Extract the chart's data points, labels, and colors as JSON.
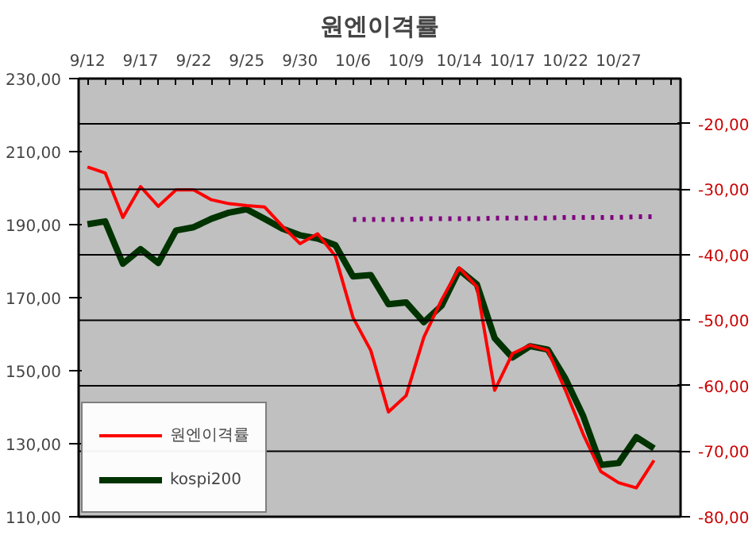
{
  "chart_data": {
    "type": "line",
    "title": "원엔이격률",
    "categories": [
      "9/12",
      null,
      null,
      "9/17",
      null,
      null,
      "9/22",
      null,
      null,
      "9/25",
      null,
      null,
      "9/30",
      null,
      null,
      "10/6",
      null,
      null,
      "10/9",
      null,
      null,
      "10/14",
      null,
      null,
      "10/17",
      null,
      null,
      "10/22",
      null,
      null,
      "10/27",
      null,
      null,
      null
    ],
    "series": [
      {
        "name": "원엔이격률",
        "color": "#ff0000",
        "axis": "y2",
        "values": [
          -26.6,
          -27.5,
          -34.3,
          -29.6,
          -32.6,
          -30.1,
          -30.1,
          -31.6,
          -32.2,
          -32.5,
          -32.7,
          -35.6,
          -38.3,
          -36.8,
          -40.2,
          -49.6,
          -54.6,
          -64.0,
          -61.5,
          -52.6,
          -46.9,
          -42.0,
          -44.9,
          -60.7,
          -55.1,
          -53.8,
          -54.6,
          -60.7,
          -67.4,
          -73.1,
          -74.8,
          -75.6,
          -71.4,
          null
        ]
      },
      {
        "name": "kospi200",
        "color": "#003300",
        "values": [
          190.1,
          190.9,
          179.3,
          183.3,
          179.5,
          188.4,
          189.3,
          191.6,
          193.3,
          194.2,
          191.6,
          188.9,
          187.1,
          186.2,
          184.4,
          175.8,
          176.2,
          168.2,
          168.7,
          163.3,
          167.8,
          177.6,
          173.6,
          158.9,
          153.6,
          156.7,
          155.8,
          147.8,
          137.6,
          124.2,
          124.7,
          131.8,
          128.7,
          null
        ]
      },
      {
        "color": "#800080",
        "axis": "y2",
        "line_style": "dotted",
        "values": [
          null,
          null,
          null,
          null,
          null,
          null,
          null,
          null,
          null,
          null,
          null,
          null,
          null,
          null,
          null,
          -34.6,
          -34.6,
          -34.6,
          -34.6,
          -34.5,
          -34.5,
          -34.5,
          -34.5,
          -34.4,
          -34.4,
          -34.4,
          -34.4,
          -34.3,
          -34.3,
          -34.3,
          -34.3,
          -34.2,
          -34.2,
          null
        ]
      }
    ],
    "ylim": [
      110,
      230
    ],
    "yticks": [
      {
        "value": 110,
        "label": "110,00"
      },
      {
        "value": 130,
        "label": "130,00"
      },
      {
        "value": 150,
        "label": "150,00"
      },
      {
        "value": 170,
        "label": "170,00"
      },
      {
        "value": 190,
        "label": "190,00"
      },
      {
        "value": 210,
        "label": "210,00"
      },
      {
        "value": 230,
        "label": "230,00"
      }
    ],
    "y2lim": [
      -80,
      -13.1
    ],
    "y2ticks": [
      {
        "value": -80,
        "label": "-80,00"
      },
      {
        "value": -70,
        "label": "-70,00"
      },
      {
        "value": -60,
        "label": "-60,00"
      },
      {
        "value": -50,
        "label": "-50,00"
      },
      {
        "value": -40,
        "label": "-40,00"
      },
      {
        "value": -30,
        "label": "-30,00"
      },
      {
        "value": -20,
        "label": "-20,00"
      }
    ],
    "grid": "y2",
    "legend": "bottom left",
    "line_style": "solid",
    "marker": "none"
  }
}
